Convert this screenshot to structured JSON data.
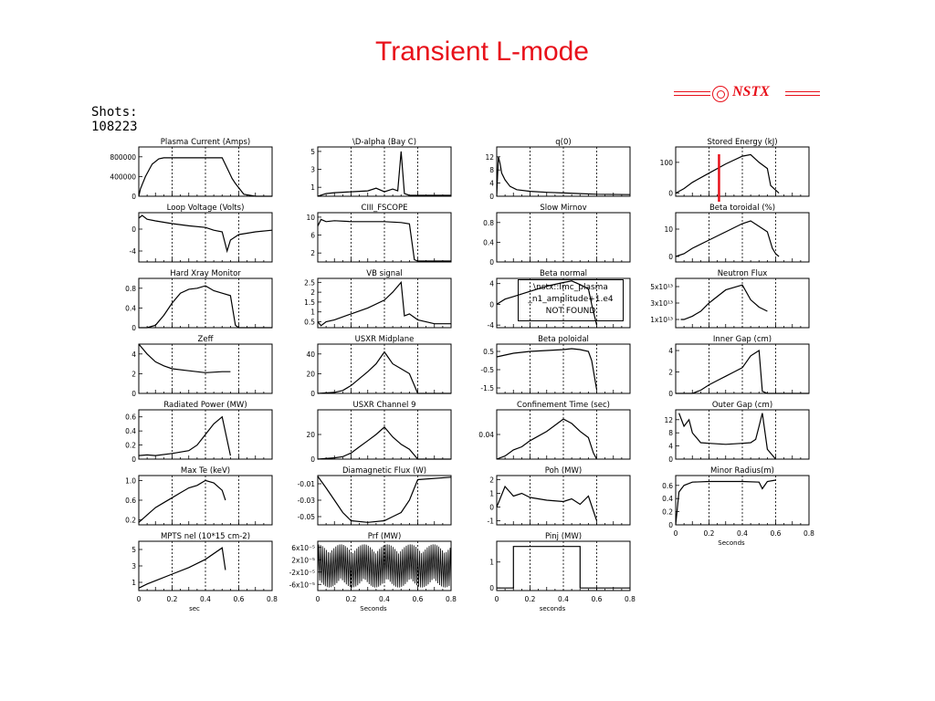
{
  "slide": {
    "title": "Transient L-mode",
    "logo_text": "NSTX",
    "shots_label": "Shots:",
    "shot_number": "108223",
    "not_found_lines": [
      "\\nstx::Imc_plasma",
      "_n1_amplitude+1.e4",
      "NOT FOUND"
    ],
    "colors": {
      "title": "#e8101a",
      "marker": "#e8101a",
      "ink": "#000000"
    }
  },
  "chart_data": [
    {
      "type": "line",
      "title": "Plasma Current (Amps)",
      "yticks": [
        "800000",
        "400000",
        "0"
      ],
      "ylim": [
        0,
        1000000
      ],
      "x": [
        0,
        0.01,
        0.04,
        0.08,
        0.12,
        0.15,
        0.2,
        0.3,
        0.4,
        0.5,
        0.54,
        0.56,
        0.58,
        0.6,
        0.63,
        0.7,
        0.8
      ],
      "values": [
        0,
        150000,
        400000,
        650000,
        760000,
        780000,
        780000,
        780000,
        780000,
        780000,
        500000,
        360000,
        260000,
        170000,
        40000,
        0,
        0
      ]
    },
    {
      "type": "line",
      "title": "\\D-alpha   (Bay C)",
      "yticks": [
        "5",
        "3",
        "1"
      ],
      "ylim": [
        0,
        5.5
      ],
      "x": [
        0,
        0.05,
        0.1,
        0.2,
        0.3,
        0.35,
        0.4,
        0.45,
        0.48,
        0.5,
        0.52,
        0.55,
        0.8
      ],
      "values": [
        0,
        0.3,
        0.4,
        0.5,
        0.6,
        0.9,
        0.5,
        0.8,
        0.6,
        5.0,
        0.3,
        0.1,
        0.1
      ]
    },
    {
      "type": "line",
      "title": "q(0)",
      "yticks": [
        "12",
        "8",
        "4",
        "0"
      ],
      "ylim": [
        0,
        15
      ],
      "x": [
        0,
        0.01,
        0.02,
        0.03,
        0.05,
        0.08,
        0.12,
        0.2,
        0.3,
        0.4,
        0.5,
        0.6,
        0.8
      ],
      "values": [
        0,
        12,
        10,
        7,
        5,
        3,
        2,
        1.5,
        1.2,
        1,
        0.8,
        0.6,
        0.5
      ]
    },
    {
      "type": "line",
      "title": "Stored Energy (kJ)",
      "yticks": [
        "100",
        "0"
      ],
      "ylim": [
        -10,
        150
      ],
      "x": [
        0,
        0.05,
        0.1,
        0.2,
        0.3,
        0.4,
        0.45,
        0.5,
        0.55,
        0.57,
        0.6,
        0.62
      ],
      "values": [
        0,
        15,
        35,
        65,
        95,
        120,
        125,
        100,
        80,
        25,
        10,
        0
      ],
      "marker_x": 0.26
    },
    {
      "type": "line",
      "title": "Loop Voltage (Volts)",
      "yticks": [
        "0",
        "-4"
      ],
      "ylim": [
        -6,
        3
      ],
      "x": [
        0,
        0.02,
        0.05,
        0.1,
        0.2,
        0.3,
        0.4,
        0.45,
        0.5,
        0.53,
        0.55,
        0.6,
        0.7,
        0.8
      ],
      "values": [
        2,
        2.5,
        1.8,
        1.5,
        1,
        0.6,
        0.3,
        -0.2,
        -0.5,
        -4,
        -2,
        -1,
        -0.5,
        -0.2
      ]
    },
    {
      "type": "line",
      "title": "CIII_FSCOPE",
      "yticks": [
        "10",
        "6",
        "2"
      ],
      "ylim": [
        0,
        11
      ],
      "x": [
        0,
        0.02,
        0.05,
        0.1,
        0.2,
        0.3,
        0.4,
        0.5,
        0.55,
        0.58,
        0.6,
        0.8
      ],
      "values": [
        8,
        9.5,
        9,
        9.2,
        9,
        9,
        9,
        8.8,
        8.5,
        0.5,
        0.2,
        0.2
      ]
    },
    {
      "type": "line",
      "title": "Slow Mirnov",
      "yticks": [
        "0.8",
        "0.4",
        "0"
      ],
      "ylim": [
        0,
        1
      ],
      "x": [],
      "values": []
    },
    {
      "type": "line",
      "title": "Beta toroidal (%)",
      "yticks": [
        "10",
        "0"
      ],
      "ylim": [
        -2,
        16
      ],
      "x": [
        0,
        0.05,
        0.1,
        0.2,
        0.3,
        0.4,
        0.45,
        0.5,
        0.55,
        0.58,
        0.6,
        0.62
      ],
      "values": [
        0,
        1,
        3,
        6,
        9,
        12,
        13,
        11,
        9,
        3,
        1,
        0
      ]
    },
    {
      "type": "line",
      "title": "Hard Xray Monitor",
      "yticks": [
        "0.8",
        "0.4",
        "0"
      ],
      "ylim": [
        0,
        1
      ],
      "x": [
        0,
        0.05,
        0.1,
        0.15,
        0.2,
        0.25,
        0.3,
        0.35,
        0.4,
        0.45,
        0.5,
        0.55,
        0.58,
        0.6,
        0.8
      ],
      "values": [
        0,
        0,
        0.05,
        0.25,
        0.5,
        0.7,
        0.78,
        0.8,
        0.85,
        0.75,
        0.7,
        0.65,
        0.05,
        0,
        0
      ]
    },
    {
      "type": "line",
      "title": "VB signal",
      "yticks": [
        "2.5",
        "2",
        "1.5",
        "1",
        "0.5"
      ],
      "ylim": [
        0.2,
        2.7
      ],
      "x": [
        0,
        0.02,
        0.05,
        0.1,
        0.2,
        0.3,
        0.4,
        0.45,
        0.5,
        0.52,
        0.55,
        0.6,
        0.7,
        0.8
      ],
      "values": [
        0.5,
        0.3,
        0.5,
        0.6,
        0.9,
        1.2,
        1.6,
        2.0,
        2.5,
        0.8,
        0.9,
        0.6,
        0.4,
        0.4
      ]
    },
    {
      "type": "line",
      "title": "Beta normal",
      "yticks": [
        "4",
        "0",
        "-4"
      ],
      "ylim": [
        -4.5,
        5
      ],
      "x": [
        0,
        0.05,
        0.1,
        0.2,
        0.3,
        0.4,
        0.45,
        0.5,
        0.55,
        0.57,
        0.6
      ],
      "values": [
        0,
        1,
        1.5,
        2.5,
        3.5,
        4.2,
        4.5,
        3.8,
        3,
        0,
        -4
      ]
    },
    {
      "type": "line",
      "title": "Neutron Flux",
      "yticks": [
        "5x10¹³",
        "3x10¹³",
        "1x10¹³"
      ],
      "ylim": [
        0,
        60000000000000.0
      ],
      "x": [
        0.03,
        0.05,
        0.1,
        0.15,
        0.2,
        0.3,
        0.4,
        0.45,
        0.5,
        0.55
      ],
      "values": [
        10000000000000.0,
        10000000000000.0,
        14000000000000.0,
        20000000000000.0,
        30000000000000.0,
        46000000000000.0,
        52000000000000.0,
        34000000000000.0,
        25000000000000.0,
        20000000000000.0
      ]
    },
    {
      "type": "line",
      "title": "Zeff",
      "yticks": [
        "4",
        "2",
        "0"
      ],
      "ylim": [
        0,
        5
      ],
      "x": [
        0,
        0.05,
        0.1,
        0.15,
        0.2,
        0.3,
        0.4,
        0.5,
        0.55
      ],
      "values": [
        5,
        4,
        3.2,
        2.8,
        2.5,
        2.3,
        2.1,
        2.2,
        2.2
      ]
    },
    {
      "type": "line",
      "title": "USXR Midplane",
      "yticks": [
        "40",
        "20",
        "0"
      ],
      "ylim": [
        0,
        50
      ],
      "x": [
        0,
        0.1,
        0.15,
        0.2,
        0.25,
        0.3,
        0.35,
        0.4,
        0.45,
        0.5,
        0.55,
        0.6,
        0.8
      ],
      "values": [
        0,
        1,
        3,
        8,
        15,
        22,
        30,
        42,
        30,
        25,
        20,
        0,
        0
      ]
    },
    {
      "type": "line",
      "title": "Beta poloidal",
      "yticks": [
        "0.5",
        "-0.5",
        "-1.5"
      ],
      "ylim": [
        -1.8,
        0.9
      ],
      "x": [
        0,
        0.05,
        0.1,
        0.2,
        0.3,
        0.4,
        0.45,
        0.5,
        0.55,
        0.57,
        0.6
      ],
      "values": [
        0.2,
        0.3,
        0.4,
        0.5,
        0.55,
        0.6,
        0.65,
        0.6,
        0.5,
        0,
        -1.6
      ]
    },
    {
      "type": "line",
      "title": "Inner Gap (cm)",
      "yticks": [
        "4",
        "2",
        "0"
      ],
      "ylim": [
        0,
        4.6
      ],
      "x": [
        0,
        0.05,
        0.1,
        0.15,
        0.2,
        0.25,
        0.3,
        0.35,
        0.4,
        0.45,
        0.48,
        0.5,
        0.52,
        0.55,
        0.8
      ],
      "values": [
        0,
        0,
        0,
        0.3,
        0.8,
        1.2,
        1.6,
        2,
        2.4,
        3.5,
        3.8,
        4,
        0.2,
        0,
        0
      ]
    },
    {
      "type": "line",
      "title": "Radiated Power (MW)",
      "yticks": [
        "0.6",
        "0.4",
        "0.2",
        "0"
      ],
      "ylim": [
        0,
        0.7
      ],
      "x": [
        0,
        0.05,
        0.1,
        0.2,
        0.3,
        0.35,
        0.4,
        0.45,
        0.5,
        0.55
      ],
      "values": [
        0.05,
        0.06,
        0.05,
        0.08,
        0.12,
        0.2,
        0.35,
        0.5,
        0.6,
        0.05
      ]
    },
    {
      "type": "line",
      "title": "USXR Channel 9",
      "yticks": [
        "20",
        "0"
      ],
      "ylim": [
        0,
        40
      ],
      "x": [
        0,
        0.1,
        0.15,
        0.2,
        0.25,
        0.3,
        0.35,
        0.4,
        0.45,
        0.5,
        0.55,
        0.6,
        0.8
      ],
      "values": [
        0,
        1,
        2,
        5,
        10,
        15,
        20,
        26,
        18,
        12,
        8,
        0,
        0
      ]
    },
    {
      "type": "line",
      "title": "Confinement Time (sec)",
      "yticks": [
        "0.04"
      ],
      "ylim": [
        0,
        0.08
      ],
      "x": [
        0,
        0.05,
        0.1,
        0.15,
        0.2,
        0.3,
        0.35,
        0.4,
        0.45,
        0.5,
        0.55,
        0.58,
        0.6
      ],
      "values": [
        0,
        0.005,
        0.015,
        0.02,
        0.03,
        0.045,
        0.055,
        0.065,
        0.058,
        0.045,
        0.035,
        0.01,
        0
      ]
    },
    {
      "type": "line",
      "title": "Outer Gap (cm)",
      "yticks": [
        "12",
        "8",
        "4",
        "0"
      ],
      "ylim": [
        0,
        15
      ],
      "x": [
        0.02,
        0.05,
        0.08,
        0.1,
        0.15,
        0.2,
        0.3,
        0.4,
        0.45,
        0.48,
        0.5,
        0.52,
        0.55,
        0.6
      ],
      "values": [
        14,
        10,
        12,
        8,
        5,
        4.8,
        4.5,
        4.8,
        5,
        6,
        10,
        14,
        3,
        0
      ]
    },
    {
      "type": "line",
      "title": "Max Te (keV)",
      "yticks": [
        "1.0",
        "0.6",
        "0.2"
      ],
      "ylim": [
        0.1,
        1.1
      ],
      "x": [
        0,
        0.05,
        0.1,
        0.15,
        0.2,
        0.25,
        0.3,
        0.35,
        0.4,
        0.45,
        0.5,
        0.52
      ],
      "values": [
        0.15,
        0.3,
        0.45,
        0.55,
        0.65,
        0.75,
        0.85,
        0.9,
        1.0,
        0.95,
        0.8,
        0.6
      ]
    },
    {
      "type": "line",
      "title": "Diamagnetic Flux (W)",
      "yticks": [
        "-0.01",
        "-0.03",
        "-0.05"
      ],
      "ylim": [
        -0.06,
        0
      ],
      "x": [
        0,
        0.05,
        0.1,
        0.15,
        0.2,
        0.3,
        0.4,
        0.45,
        0.5,
        0.55,
        0.6,
        0.8
      ],
      "values": [
        -0.001,
        -0.015,
        -0.03,
        -0.045,
        -0.055,
        -0.057,
        -0.055,
        -0.05,
        -0.045,
        -0.03,
        -0.005,
        -0.002
      ]
    },
    {
      "type": "line",
      "title": "Poh (MW)",
      "yticks": [
        "2",
        "1",
        "0",
        "-1"
      ],
      "ylim": [
        -1.3,
        2.3
      ],
      "x": [
        0,
        0.05,
        0.1,
        0.15,
        0.2,
        0.3,
        0.4,
        0.45,
        0.5,
        0.55,
        0.6
      ],
      "values": [
        0,
        1.5,
        0.8,
        1,
        0.7,
        0.5,
        0.4,
        0.6,
        0.2,
        0.8,
        -1
      ]
    },
    {
      "type": "line",
      "title": "Minor Radius(m)",
      "yticks": [
        "0.6",
        "0.4",
        "0.2",
        "0"
      ],
      "ylim": [
        0,
        0.75
      ],
      "x": [
        0,
        0.02,
        0.05,
        0.1,
        0.2,
        0.3,
        0.4,
        0.5,
        0.52,
        0.55,
        0.6
      ],
      "values": [
        0,
        0.5,
        0.6,
        0.65,
        0.66,
        0.66,
        0.66,
        0.65,
        0.55,
        0.66,
        0.68
      ],
      "xticks": [
        "0",
        "0.2",
        "0.4",
        "0.6",
        "0.8"
      ],
      "xlabel": "Seconds"
    },
    {
      "type": "line",
      "title": "MPTS nel (10*15 cm-2)",
      "yticks": [
        "5",
        "3",
        "1"
      ],
      "ylim": [
        0,
        6
      ],
      "x": [
        0,
        0.05,
        0.1,
        0.2,
        0.3,
        0.4,
        0.5,
        0.52
      ],
      "values": [
        0.3,
        0.8,
        1.2,
        2,
        2.8,
        3.8,
        5.2,
        2.5
      ],
      "xticks": [
        "0",
        "0.2",
        "0.4",
        "0.6",
        "0.8"
      ],
      "xlabel": "sec"
    },
    {
      "type": "line",
      "title": "Prf (MW)",
      "yticks": [
        "6x10⁻⁵",
        "2x10⁻⁵",
        "-2x10⁻⁵",
        "-6x10⁻⁵"
      ],
      "ylim": [
        -8e-05,
        8e-05
      ],
      "x": [],
      "values": [],
      "xticks": [
        "0",
        "0.2",
        "0.4",
        "0.6",
        "0.8"
      ],
      "xlabel": "Seconds"
    },
    {
      "type": "line",
      "title": "Pinj (MW)",
      "yticks": [
        "1",
        "0"
      ],
      "ylim": [
        -0.1,
        1.8
      ],
      "x": [
        0,
        0.1,
        0.1,
        0.5,
        0.5,
        0.8
      ],
      "values": [
        0,
        0,
        1.6,
        1.6,
        0,
        0
      ],
      "xticks": [
        "0",
        "0.2",
        "0.4",
        "0.6",
        "0.8"
      ],
      "xlabel": "seconds"
    }
  ]
}
